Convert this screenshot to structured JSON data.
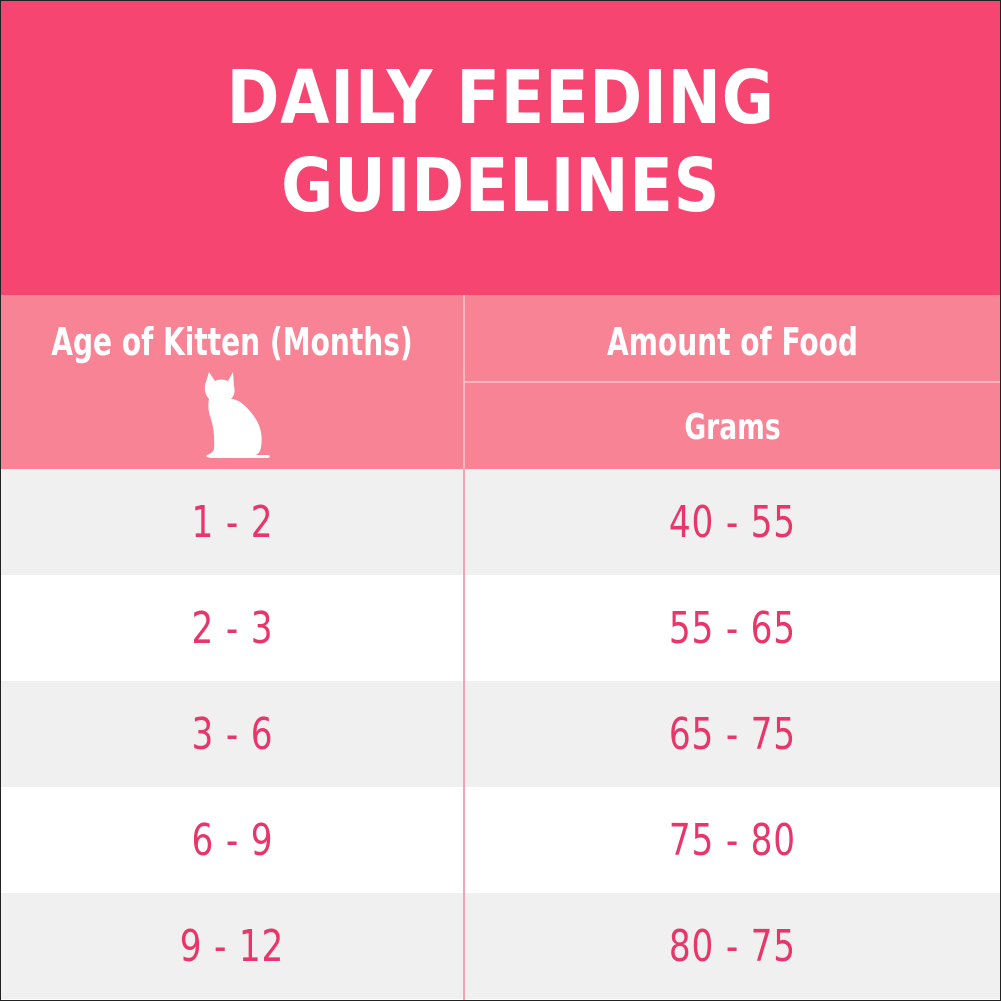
{
  "title": {
    "line1": "DAILY FEEDING",
    "line2": "GUIDELINES"
  },
  "header": {
    "age_label": "Age of Kitten (Months)",
    "amount_label": "Amount of Food",
    "unit_label": "Grams",
    "icon": "cat-silhouette-icon"
  },
  "rows": [
    {
      "age": "1 - 2",
      "amount": "40 - 55"
    },
    {
      "age": "2 - 3",
      "amount": "55 - 65"
    },
    {
      "age": "3 - 6",
      "amount": "65 - 75"
    },
    {
      "age": "6 - 9",
      "amount": "75 - 80"
    },
    {
      "age": "9 - 12",
      "amount": "80 - 75"
    }
  ],
  "colors": {
    "title_band": "#f54570",
    "header_band": "#f88394",
    "value_text": "#e9366a",
    "row_alt": "#f0f0f0",
    "row_plain": "#ffffff"
  }
}
